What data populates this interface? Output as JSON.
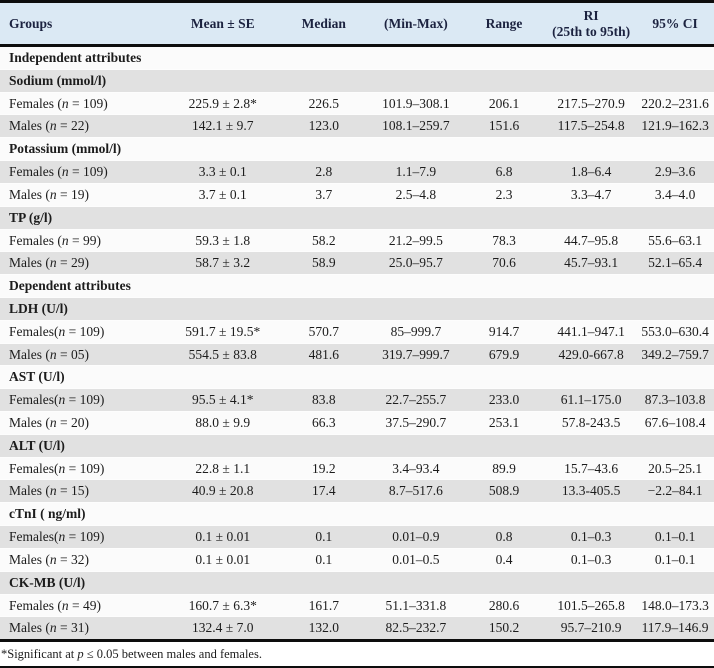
{
  "table": {
    "columns": [
      {
        "key": "group",
        "label": "Groups"
      },
      {
        "key": "mean-se",
        "label": "Mean ± SE"
      },
      {
        "key": "median",
        "label": "Median"
      },
      {
        "key": "min-max",
        "label": "(Min-Max)"
      },
      {
        "key": "range",
        "label": "Range"
      },
      {
        "key": "ri",
        "label": "RI",
        "label_line2": "(25th to 95th)"
      },
      {
        "key": "ci",
        "label": "95% CI"
      }
    ],
    "rows": [
      {
        "type": "section",
        "label": "Independent attributes"
      },
      {
        "type": "subheader",
        "label": "Sodium (mmol/l)"
      },
      {
        "type": "data",
        "group": "Females (n = 109)",
        "values": [
          "225.9 ± 2.8*",
          "226.5",
          "101.9–308.1",
          "206.1",
          "217.5–270.9",
          "220.2–231.6"
        ]
      },
      {
        "type": "data",
        "group": "Males (n = 22)",
        "values": [
          "142.1 ± 9.7",
          "123.0",
          "108.1–259.7",
          "151.6",
          "117.5–254.8",
          "121.9–162.3"
        ]
      },
      {
        "type": "subheader",
        "label": "Potassium (mmol/l)"
      },
      {
        "type": "data",
        "group": "Females (n = 109)",
        "values": [
          "3.3 ± 0.1",
          "2.8",
          "1.1–7.9",
          "6.8",
          "1.8–6.4",
          "2.9–3.6"
        ]
      },
      {
        "type": "data",
        "group": "Males (n = 19)",
        "values": [
          "3.7 ± 0.1",
          "3.7",
          "2.5–4.8",
          "2.3",
          "3.3–4.7",
          "3.4–4.0"
        ]
      },
      {
        "type": "subheader",
        "label": "TP (g/l)"
      },
      {
        "type": "data",
        "group": "Females (n = 99)",
        "values": [
          "59.3 ± 1.8",
          "58.2",
          "21.2–99.5",
          "78.3",
          "44.7–95.8",
          "55.6–63.1"
        ]
      },
      {
        "type": "data",
        "group": "Males (n = 29)",
        "values": [
          "58.7 ± 3.2",
          "58.9",
          "25.0–95.7",
          "70.6",
          "45.7–93.1",
          "52.1–65.4"
        ]
      },
      {
        "type": "section",
        "label": "Dependent attributes"
      },
      {
        "type": "subheader",
        "label": "LDH (U/l)"
      },
      {
        "type": "data",
        "group": "Females(n = 109)",
        "values": [
          "591.7 ± 19.5*",
          "570.7",
          "85–999.7",
          "914.7",
          "441.1–947.1",
          "553.0–630.4"
        ]
      },
      {
        "type": "data",
        "group": "Males (n = 05)",
        "values": [
          "554.5 ± 83.8",
          "481.6",
          "319.7–999.7",
          "679.9",
          "429.0-667.8",
          "349.2–759.7"
        ]
      },
      {
        "type": "subheader",
        "label": "AST (U/l)"
      },
      {
        "type": "data",
        "group": "Females(n = 109)",
        "values": [
          "95.5 ± 4.1*",
          "83.8",
          "22.7–255.7",
          "233.0",
          "61.1–175.0",
          "87.3–103.8"
        ]
      },
      {
        "type": "data",
        "group": "Males (n = 20)",
        "values": [
          "88.0 ± 9.9",
          "66.3",
          "37.5–290.7",
          "253.1",
          "57.8-243.5",
          "67.6–108.4"
        ]
      },
      {
        "type": "subheader",
        "label": "ALT (U/l)"
      },
      {
        "type": "data",
        "group": "Females(n = 109)",
        "values": [
          "22.8 ± 1.1",
          "19.2",
          "3.4–93.4",
          "89.9",
          "15.7–43.6",
          "20.5–25.1"
        ]
      },
      {
        "type": "data",
        "group": "Males (n = 15)",
        "values": [
          "40.9 ± 20.8",
          "17.4",
          "8.7–517.6",
          "508.9",
          "13.3-405.5",
          "−2.2–84.1"
        ]
      },
      {
        "type": "subheader",
        "label": "cTnI ( ng/ml)"
      },
      {
        "type": "data",
        "group": "Females(n = 109)",
        "values": [
          "0.1 ± 0.01",
          "0.1",
          "0.01–0.9",
          "0.8",
          "0.1–0.3",
          "0.1–0.1"
        ]
      },
      {
        "type": "data",
        "group": "Males (n = 32)",
        "values": [
          "0.1 ± 0.01",
          "0.1",
          "0.01–0.5",
          "0.4",
          "0.1–0.3",
          "0.1–0.1"
        ]
      },
      {
        "type": "subheader",
        "label": "CK-MB (U/l)"
      },
      {
        "type": "data",
        "group": "Females (n = 49)",
        "values": [
          "160.7 ± 6.3*",
          "161.7",
          "51.1–331.8",
          "280.6",
          "101.5–265.8",
          "148.0–173.3"
        ]
      },
      {
        "type": "data",
        "group": "Males (n = 31)",
        "values": [
          "132.4 ± 7.0",
          "132.0",
          "82.5–232.7",
          "150.2",
          "95.7–210.9",
          "117.9–146.9"
        ]
      }
    ],
    "footnote": "*Significant at p ≤ 0.05 between males and females.",
    "colors": {
      "header_bg": "#dbe9f4",
      "header_text": "#1c2340",
      "stripe_gray": "#e1e1e1",
      "stripe_white": "#fbfbfb",
      "rule_black": "#0d0d0d"
    }
  }
}
